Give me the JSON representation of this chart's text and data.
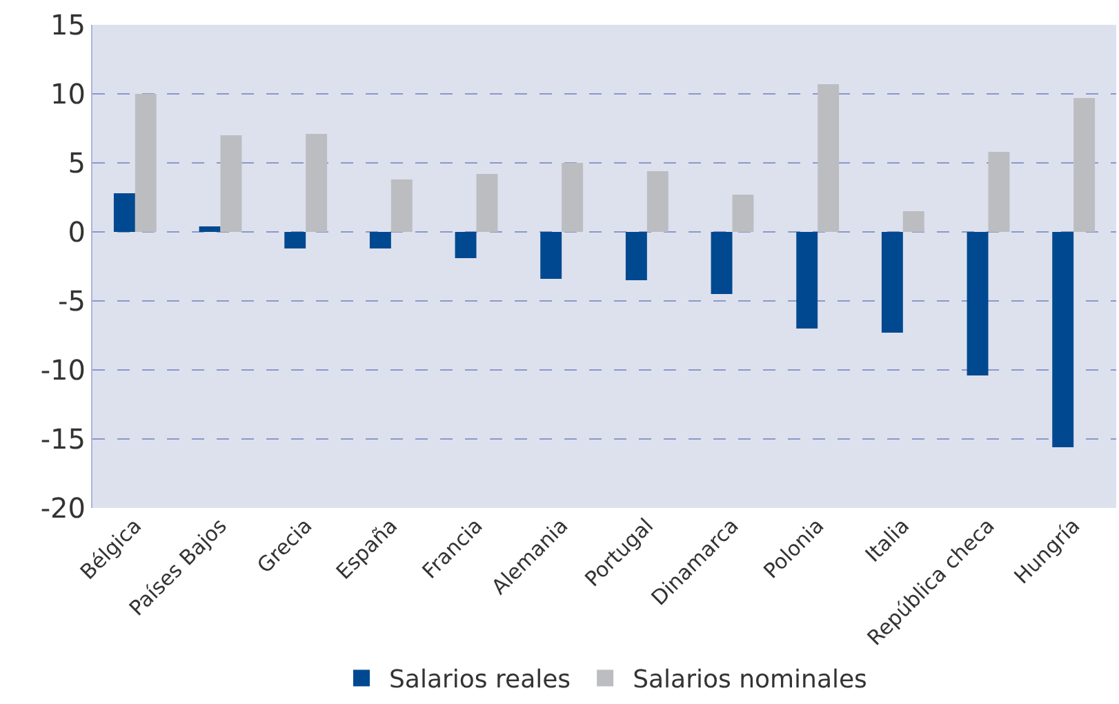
{
  "chart_data": {
    "type": "bar",
    "categories": [
      "Bélgica",
      "Países Bajos",
      "Grecia",
      "España",
      "Francia",
      "Alemania",
      "Portugal",
      "Dinamarca",
      "Polonia",
      "Italia",
      "República checa",
      "Hungría"
    ],
    "series": [
      {
        "name": "Salarios reales",
        "color": "#004990",
        "values": [
          2.8,
          0.4,
          -1.2,
          -1.2,
          -1.9,
          -3.4,
          -3.5,
          -4.5,
          -7.0,
          -7.3,
          -10.4,
          -15.6
        ]
      },
      {
        "name": "Salarios nominales",
        "color": "#bcbdc0",
        "values": [
          10.0,
          7.0,
          7.1,
          3.8,
          4.2,
          5.0,
          4.4,
          2.7,
          10.7,
          1.5,
          5.8,
          9.7
        ]
      }
    ],
    "ylim": [
      -20,
      15
    ],
    "yticks": [
      -20,
      -15,
      -10,
      -5,
      0,
      5,
      10,
      15
    ],
    "grid": "y",
    "legend": "bottom"
  }
}
